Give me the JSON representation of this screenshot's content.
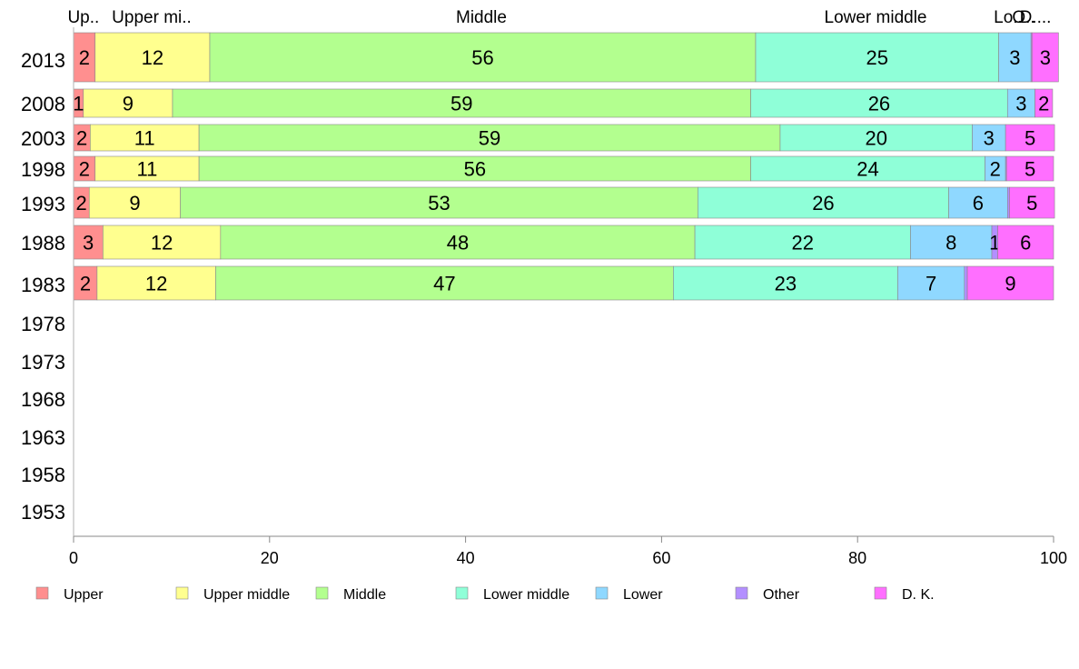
{
  "chart_data": {
    "type": "bar",
    "orientation": "horizontal",
    "stacked": true,
    "categories": [
      "2013",
      "2008",
      "2003",
      "1998",
      "1993",
      "1988",
      "1983",
      "1978",
      "1973",
      "1968",
      "1963",
      "1958",
      "1953"
    ],
    "header_labels": [
      "Up..",
      "Upper mi..",
      "Middle",
      "Lower middle",
      "Lo..",
      "O..",
      "D...."
    ],
    "series": [
      {
        "name": "Upper",
        "color": "#ff8f8f",
        "values": [
          2,
          1,
          2,
          2,
          2,
          3,
          2,
          null,
          null,
          null,
          null,
          null,
          null
        ],
        "exact": [
          2.2,
          1.0,
          1.7,
          2.2,
          1.6,
          3.0,
          2.4
        ]
      },
      {
        "name": "Upper middle",
        "color": "#ffff8f",
        "values": [
          12,
          9,
          11,
          11,
          9,
          12,
          12,
          null,
          null,
          null,
          null,
          null,
          null
        ],
        "exact": [
          11.7,
          9.1,
          11.1,
          10.6,
          9.3,
          12.0,
          12.1
        ]
      },
      {
        "name": "Middle",
        "color": "#b3ff8f",
        "values": [
          56,
          59,
          59,
          56,
          53,
          48,
          47,
          null,
          null,
          null,
          null,
          null,
          null
        ],
        "exact": [
          55.7,
          59.0,
          59.3,
          56.3,
          52.8,
          48.4,
          46.7
        ]
      },
      {
        "name": "Lower middle",
        "color": "#8fffd8",
        "values": [
          25,
          26,
          20,
          24,
          26,
          22,
          23,
          null,
          null,
          null,
          null,
          null,
          null
        ],
        "exact": [
          24.8,
          26.2,
          19.6,
          23.9,
          25.6,
          22.0,
          22.9
        ]
      },
      {
        "name": "Lower",
        "color": "#8fd8ff",
        "values": [
          3,
          3,
          3,
          2,
          6,
          8,
          7,
          null,
          null,
          null,
          null,
          null,
          null
        ],
        "exact": [
          3.3,
          2.8,
          3.4,
          2.1,
          6.0,
          8.3,
          6.8
        ]
      },
      {
        "name": "Other",
        "color": "#b38fff",
        "values": [
          null,
          null,
          null,
          null,
          null,
          1,
          null,
          null,
          null,
          null,
          null,
          null,
          null
        ],
        "exact": [
          0.1,
          0.0,
          0.0,
          0.1,
          0.2,
          0.6,
          0.3
        ]
      },
      {
        "name": "D. K.",
        "color": "#ff6fff",
        "values": [
          3,
          2,
          5,
          5,
          5,
          6,
          9,
          null,
          null,
          null,
          null,
          null,
          null
        ],
        "exact": [
          2.7,
          1.8,
          5.0,
          4.8,
          4.6,
          5.7,
          8.8
        ]
      }
    ],
    "xlim": [
      0,
      100
    ],
    "xticks": [
      "0",
      "20",
      "40",
      "60",
      "80",
      "100"
    ],
    "legend_position": "bottom",
    "grid": false
  }
}
